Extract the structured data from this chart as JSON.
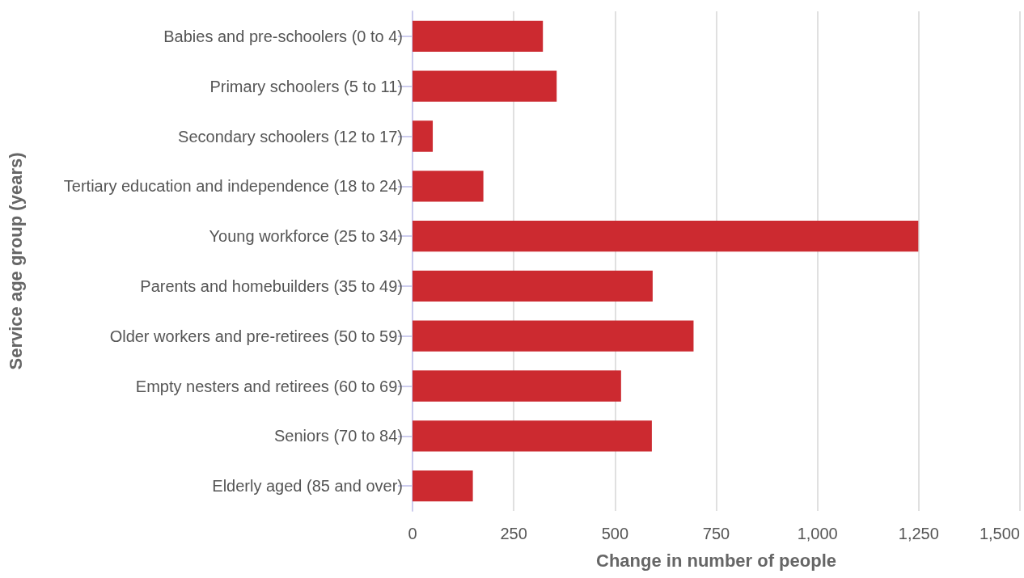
{
  "chart_data": {
    "type": "bar",
    "orientation": "horizontal",
    "xlabel": "Change in number of people",
    "ylabel": "Service age group (years)",
    "categories": [
      "Babies and pre-schoolers (0 to 4)",
      "Primary schoolers (5 to 11)",
      "Secondary schoolers (12 to 17)",
      "Tertiary education and independence (18 to 24)",
      "Young workforce (25 to 34)",
      "Parents and homebuilders (35 to 49)",
      "Older workers and pre-retirees (50 to 59)",
      "Empty nesters and retirees (60 to 69)",
      "Seniors (70 to 84)",
      "Elderly aged (85 and over)"
    ],
    "values": [
      322,
      356,
      50,
      175,
      1249,
      593,
      694,
      515,
      591,
      149
    ],
    "color": "#cc2a30",
    "xlim": [
      0,
      1500
    ],
    "xticks": [
      0,
      250,
      500,
      750,
      {
        "value": 1000,
        "label": "1,000"
      },
      {
        "value": 1250,
        "label": "1,250"
      },
      {
        "value": 1500,
        "label": "1,500"
      }
    ],
    "grid": "x"
  }
}
